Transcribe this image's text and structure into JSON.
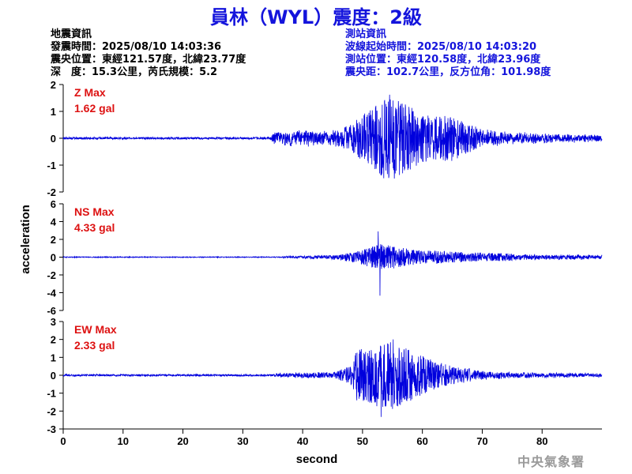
{
  "title": "員林（WYL）震度：2級",
  "quake_info": {
    "heading": "地震資訊",
    "time": "發震時間：2025/08/10 14:03:36",
    "location": "震央位置：東經121.57度，北緯23.77度",
    "depth_magnitude": "深　度：15.3公里，芮氏規模：5.2"
  },
  "station_info": {
    "heading": "測站資訊",
    "wave_start": "波線起始時間：2025/08/10 14:03:20",
    "location": "測站位置：東經120.58度，北緯23.96度",
    "distance_azimuth": "震央距：102.7公里，反方位角：101.98度"
  },
  "agency": "中央氣象署",
  "colors": {
    "title": "#1414dc",
    "trace": "#0000dd",
    "max_label": "#dd1111",
    "station_text": "#1414dc"
  },
  "chart_data": {
    "type": "line",
    "xlabel": "second",
    "ylabel": "acceleration",
    "xlim": [
      0,
      90
    ],
    "xticks": [
      0,
      10,
      20,
      30,
      40,
      50,
      60,
      70,
      80
    ],
    "grid": false,
    "series": [
      {
        "name": "Z",
        "max_label": "Z Max",
        "max_value": "1.62 gal",
        "ylim": [
          -2,
          2
        ],
        "yticks": [
          -2,
          -1,
          0,
          1,
          2
        ],
        "noise": 0.04,
        "envelope": [
          [
            0,
            0.04
          ],
          [
            34.5,
            0.04
          ],
          [
            35.5,
            0.3
          ],
          [
            40,
            0.35
          ],
          [
            45,
            0.3
          ],
          [
            48,
            0.5
          ],
          [
            50,
            0.9
          ],
          [
            52,
            1.2
          ],
          [
            53.5,
            1.5
          ],
          [
            55,
            1.5
          ],
          [
            57,
            1.3
          ],
          [
            60,
            0.9
          ],
          [
            63,
            0.8
          ],
          [
            65,
            0.9
          ],
          [
            67,
            0.6
          ],
          [
            70,
            0.35
          ],
          [
            75,
            0.25
          ],
          [
            80,
            0.2
          ],
          [
            89.5,
            0.15
          ]
        ],
        "spikes": [
          [
            54.5,
            1.62
          ],
          [
            55.3,
            -1.5
          ]
        ]
      },
      {
        "name": "NS",
        "max_label": "NS Max",
        "max_value": "4.33 gal",
        "ylim": [
          -6,
          6
        ],
        "yticks": [
          -6,
          -4,
          -2,
          0,
          2,
          4,
          6
        ],
        "noise": 0.05,
        "envelope": [
          [
            0,
            0.05
          ],
          [
            35,
            0.05
          ],
          [
            40,
            0.2
          ],
          [
            45,
            0.3
          ],
          [
            48,
            0.5
          ],
          [
            50,
            0.8
          ],
          [
            52,
            1.5
          ],
          [
            53,
            1.6
          ],
          [
            55,
            1.3
          ],
          [
            57,
            1.0
          ],
          [
            60,
            0.8
          ],
          [
            63,
            0.7
          ],
          [
            65,
            0.6
          ],
          [
            70,
            0.5
          ],
          [
            75,
            0.4
          ],
          [
            80,
            0.35
          ],
          [
            89.5,
            0.3
          ]
        ],
        "spikes": [
          [
            52.6,
            2.9
          ],
          [
            52.9,
            -4.33
          ]
        ]
      },
      {
        "name": "EW",
        "max_label": "EW Max",
        "max_value": "2.33 gal",
        "ylim": [
          -3,
          3
        ],
        "yticks": [
          -3,
          -2,
          -1,
          0,
          1,
          2,
          3
        ],
        "noise": 0.05,
        "envelope": [
          [
            0,
            0.05
          ],
          [
            35,
            0.05
          ],
          [
            36,
            0.15
          ],
          [
            45,
            0.2
          ],
          [
            48,
            0.5
          ],
          [
            49,
            1.4
          ],
          [
            51,
            1.6
          ],
          [
            53,
            1.8
          ],
          [
            55,
            1.9
          ],
          [
            57,
            1.6
          ],
          [
            60,
            1.1
          ],
          [
            63,
            0.7
          ],
          [
            65,
            0.5
          ],
          [
            68,
            0.4
          ],
          [
            70,
            0.3
          ],
          [
            75,
            0.2
          ],
          [
            80,
            0.18
          ],
          [
            89.5,
            0.12
          ]
        ],
        "spikes": [
          [
            53.1,
            -2.33
          ],
          [
            55.1,
            2.0
          ]
        ]
      }
    ]
  }
}
